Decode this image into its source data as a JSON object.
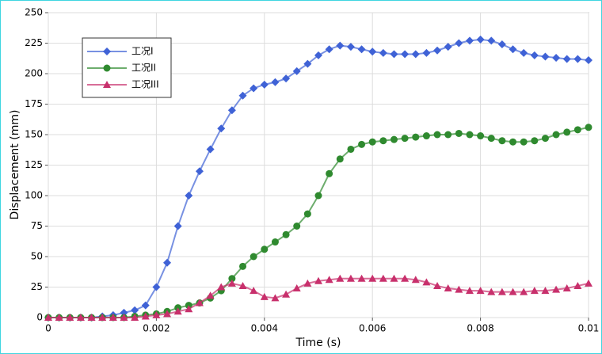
{
  "chart_data": {
    "type": "line",
    "xlabel": "Time (s)",
    "ylabel": "Displacement (mm)",
    "x": [
      0,
      0.0002,
      0.0004,
      0.0006,
      0.0008,
      0.001,
      0.0012,
      0.0014,
      0.0016,
      0.0018,
      0.002,
      0.0022,
      0.0024,
      0.0026,
      0.0028,
      0.003,
      0.0032,
      0.0034,
      0.0036,
      0.0038,
      0.004,
      0.0042,
      0.0044,
      0.0046,
      0.0048,
      0.005,
      0.0052,
      0.0054,
      0.0056,
      0.0058,
      0.006,
      0.0062,
      0.0064,
      0.0066,
      0.0068,
      0.007,
      0.0072,
      0.0074,
      0.0076,
      0.0078,
      0.008,
      0.0082,
      0.0084,
      0.0086,
      0.0088,
      0.009,
      0.0092,
      0.0094,
      0.0096,
      0.0098,
      0.01
    ],
    "series": [
      {
        "name": "工况I",
        "color": "#3f62d6",
        "marker": "diamond",
        "values": [
          0,
          0,
          0,
          0,
          0,
          1,
          2,
          4,
          6,
          10,
          25,
          45,
          75,
          100,
          120,
          138,
          155,
          170,
          182,
          188,
          191,
          193,
          196,
          202,
          208,
          215,
          220,
          223,
          222,
          220,
          218,
          217,
          216,
          216,
          216,
          217,
          219,
          222,
          225,
          227,
          228,
          227,
          224,
          220,
          217,
          215,
          214,
          213,
          212,
          212,
          211
        ]
      },
      {
        "name": "工况II",
        "color": "#2f8a2f",
        "marker": "circle",
        "values": [
          0,
          0,
          0,
          0,
          0,
          0,
          0,
          0,
          1,
          2,
          3,
          5,
          8,
          10,
          12,
          16,
          22,
          32,
          42,
          50,
          56,
          62,
          68,
          75,
          85,
          100,
          118,
          130,
          138,
          142,
          144,
          145,
          146,
          147,
          148,
          149,
          150,
          150,
          151,
          150,
          149,
          147,
          145,
          144,
          144,
          145,
          147,
          150,
          152,
          154,
          156
        ]
      },
      {
        "name": "工况III",
        "color": "#c8306c",
        "marker": "triangle",
        "values": [
          0,
          0,
          0,
          0,
          0,
          0,
          0,
          0,
          0,
          1,
          2,
          3,
          5,
          7,
          12,
          18,
          25,
          28,
          26,
          22,
          17,
          16,
          19,
          24,
          28,
          30,
          31,
          32,
          32,
          32,
          32,
          32,
          32,
          32,
          31,
          29,
          26,
          24,
          23,
          22,
          22,
          21,
          21,
          21,
          21,
          22,
          22,
          23,
          24,
          26,
          28
        ]
      }
    ],
    "xlim": [
      0,
      0.01
    ],
    "xticks": [
      0,
      0.002,
      0.004,
      0.006,
      0.008,
      0.01
    ],
    "ylim": [
      0,
      250
    ],
    "yticks": [
      0,
      25,
      50,
      75,
      100,
      125,
      150,
      175,
      200,
      225,
      250
    ],
    "grid": true,
    "legend": "upper-left"
  }
}
